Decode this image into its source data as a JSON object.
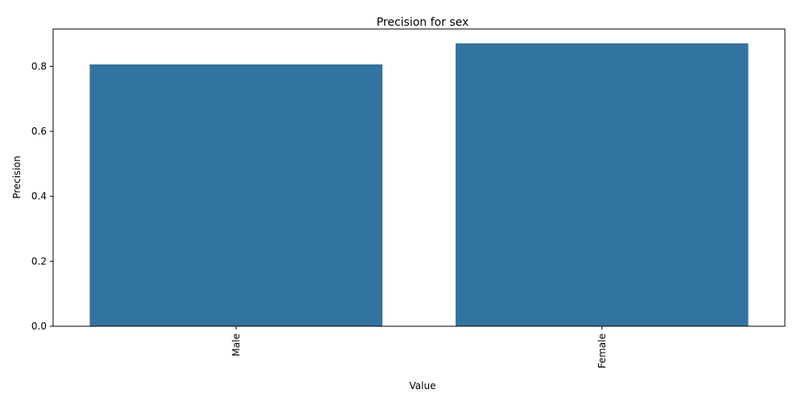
{
  "chart_data": {
    "type": "bar",
    "title": "Precision for sex",
    "xlabel": "Value",
    "ylabel": "Precision",
    "categories": [
      "Male",
      "Female"
    ],
    "values": [
      0.806,
      0.871
    ],
    "ylim": [
      0,
      0.915
    ],
    "yticks": [
      0.0,
      0.2,
      0.4,
      0.6,
      0.8
    ],
    "ytick_labels": [
      "0.0",
      "0.2",
      "0.4",
      "0.6",
      "0.8"
    ],
    "xtick_rotation": "vertical",
    "grid": false,
    "legend": "none",
    "bar_color": "#3274a1"
  }
}
